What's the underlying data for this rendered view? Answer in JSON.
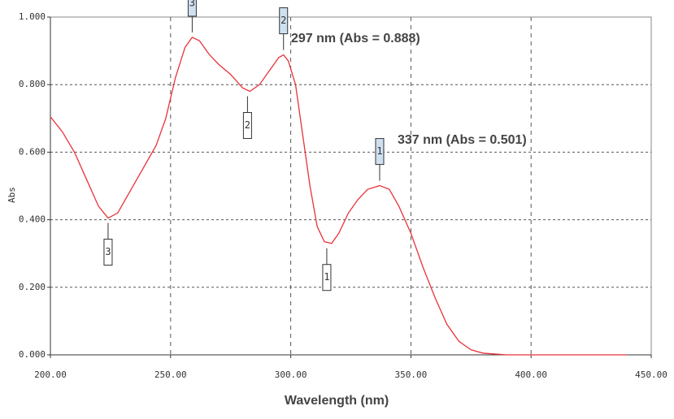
{
  "chart_data": {
    "type": "line",
    "x_label": "Wavelength (nm)",
    "y_label": "Abs",
    "annotations": [
      "297 nm (Abs = 0.888)",
      "337 nm (Abs = 0.501)"
    ],
    "x": [
      200,
      205,
      210,
      215,
      220,
      224,
      228,
      232,
      236,
      240,
      244,
      248,
      252,
      256,
      259,
      262,
      266,
      270,
      275,
      280,
      283,
      287,
      291,
      295,
      297,
      299,
      302,
      305,
      308,
      311,
      314,
      317,
      320,
      324,
      328,
      332,
      337,
      341,
      345,
      350,
      355,
      360,
      365,
      370,
      375,
      380,
      390,
      400,
      440
    ],
    "values": [
      0.705,
      0.66,
      0.6,
      0.52,
      0.44,
      0.405,
      0.42,
      0.47,
      0.52,
      0.57,
      0.62,
      0.7,
      0.82,
      0.91,
      0.94,
      0.93,
      0.89,
      0.86,
      0.83,
      0.79,
      0.78,
      0.8,
      0.84,
      0.88,
      0.888,
      0.87,
      0.8,
      0.65,
      0.5,
      0.38,
      0.335,
      0.33,
      0.36,
      0.42,
      0.46,
      0.49,
      0.501,
      0.49,
      0.44,
      0.36,
      0.26,
      0.17,
      0.09,
      0.04,
      0.015,
      0.005,
      0,
      0,
      0
    ],
    "color": "#e8333a",
    "peaks": [
      {
        "label": "1",
        "x": 337,
        "y": 0.501
      },
      {
        "label": "2",
        "x": 297,
        "y": 0.888
      },
      {
        "label": "3",
        "x": 259,
        "y": 0.94
      }
    ],
    "valleys": [
      {
        "label": "1",
        "x": 315,
        "y": 0.33
      },
      {
        "label": "2",
        "x": 282,
        "y": 0.78
      },
      {
        "label": "3",
        "x": 224,
        "y": 0.405
      }
    ],
    "xlim": [
      200,
      450
    ],
    "ylim": [
      0,
      1
    ],
    "xticks": [
      {
        "value": 200,
        "label": "200.00"
      },
      {
        "value": 250,
        "label": "250.00"
      },
      {
        "value": 300,
        "label": "300.00"
      },
      {
        "value": 350,
        "label": "350.00"
      },
      {
        "value": 400,
        "label": "400.00"
      },
      {
        "value": 450,
        "label": "450.00"
      }
    ],
    "yticks": [
      {
        "value": 0,
        "label": "0.000"
      },
      {
        "value": 0.2,
        "label": "0.200"
      },
      {
        "value": 0.4,
        "label": "0.400"
      },
      {
        "value": 0.6,
        "label": "0.600"
      },
      {
        "value": 0.8,
        "label": "0.800"
      },
      {
        "value": 1,
        "label": "1.000"
      }
    ],
    "grid": true
  }
}
